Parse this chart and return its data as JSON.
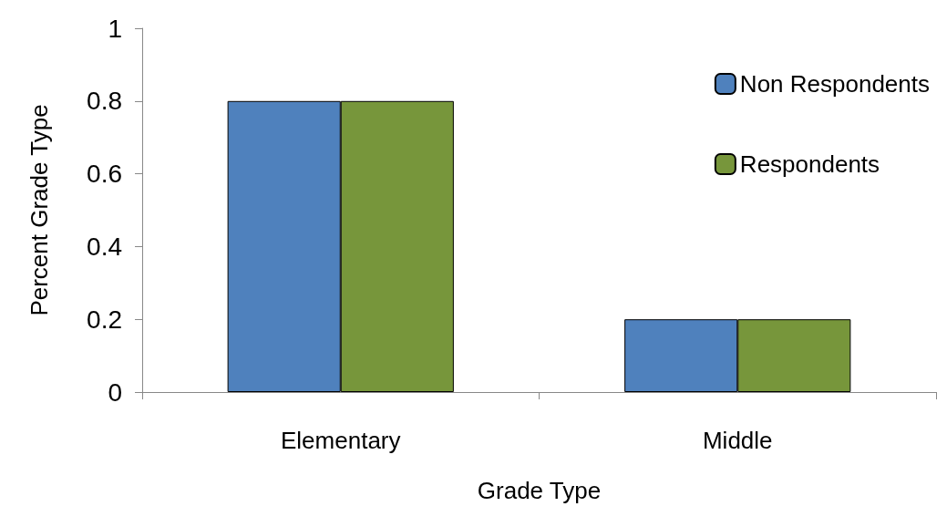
{
  "chart_data": {
    "type": "bar",
    "xlabel": "Grade Type",
    "ylabel": "Percent Grade Type",
    "categories": [
      "Elementary",
      "Middle"
    ],
    "series": [
      {
        "name": "Non Respondents",
        "color": "#4f81bd",
        "values": [
          0.8,
          0.2
        ]
      },
      {
        "name": "Respondents",
        "color": "#77963b",
        "values": [
          0.8,
          0.2
        ]
      }
    ],
    "ylim": [
      0,
      1
    ],
    "yticks": [
      0,
      0.2,
      0.4,
      0.6,
      0.8,
      1
    ],
    "grid": false,
    "legend": "top right"
  }
}
